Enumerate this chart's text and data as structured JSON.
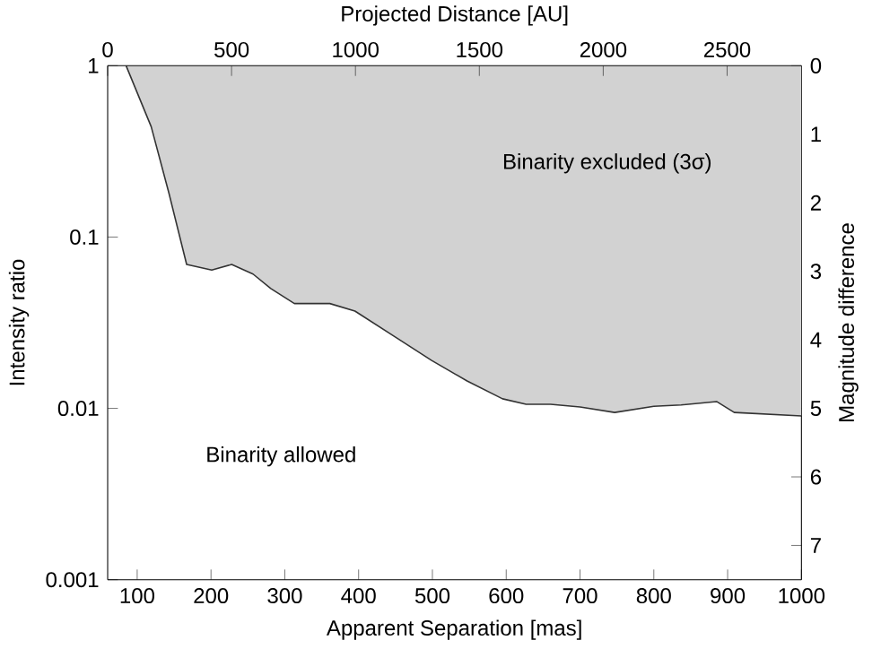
{
  "chart_data": {
    "type": "area",
    "xlabel": "Apparent Separation [mas]",
    "ylabel": "Intensity ratio",
    "x2label": "Projected Distance [AU]",
    "y2label": "Magnitude difference",
    "annotations": [
      "Binarity excluded (3σ)",
      "Binarity allowed"
    ],
    "log": "y",
    "xlim": [
      60,
      1000
    ],
    "xticks": [
      100,
      200,
      300,
      400,
      500,
      600,
      700,
      800,
      900,
      1000
    ],
    "ylim": [
      0.001,
      1
    ],
    "yticks": [
      0.001,
      0.01,
      0.1,
      1
    ],
    "x2lim": [
      0,
      2800
    ],
    "x2ticks": [
      0,
      500,
      1000,
      1500,
      2000,
      2500
    ],
    "y2lim": [
      7.5,
      0
    ],
    "y2ticks": [
      0,
      1,
      2,
      3,
      4,
      5,
      6,
      7
    ],
    "series": [
      {
        "color": "#333333",
        "axis": "y2",
        "x": [
          85,
          119,
          143,
          167,
          201,
          228,
          257,
          281,
          313,
          361,
          395,
          450,
          499,
          547,
          595,
          627,
          660,
          700,
          747,
          800,
          837,
          885,
          909,
          1000
        ],
        "values": [
          0,
          0.89,
          1.86,
          2.9,
          2.98,
          2.9,
          3.04,
          3.25,
          3.47,
          3.47,
          3.58,
          3.96,
          4.3,
          4.6,
          4.86,
          4.94,
          4.94,
          4.98,
          5.06,
          4.97,
          4.95,
          4.9,
          5.06,
          5.11
        ]
      }
    ]
  }
}
